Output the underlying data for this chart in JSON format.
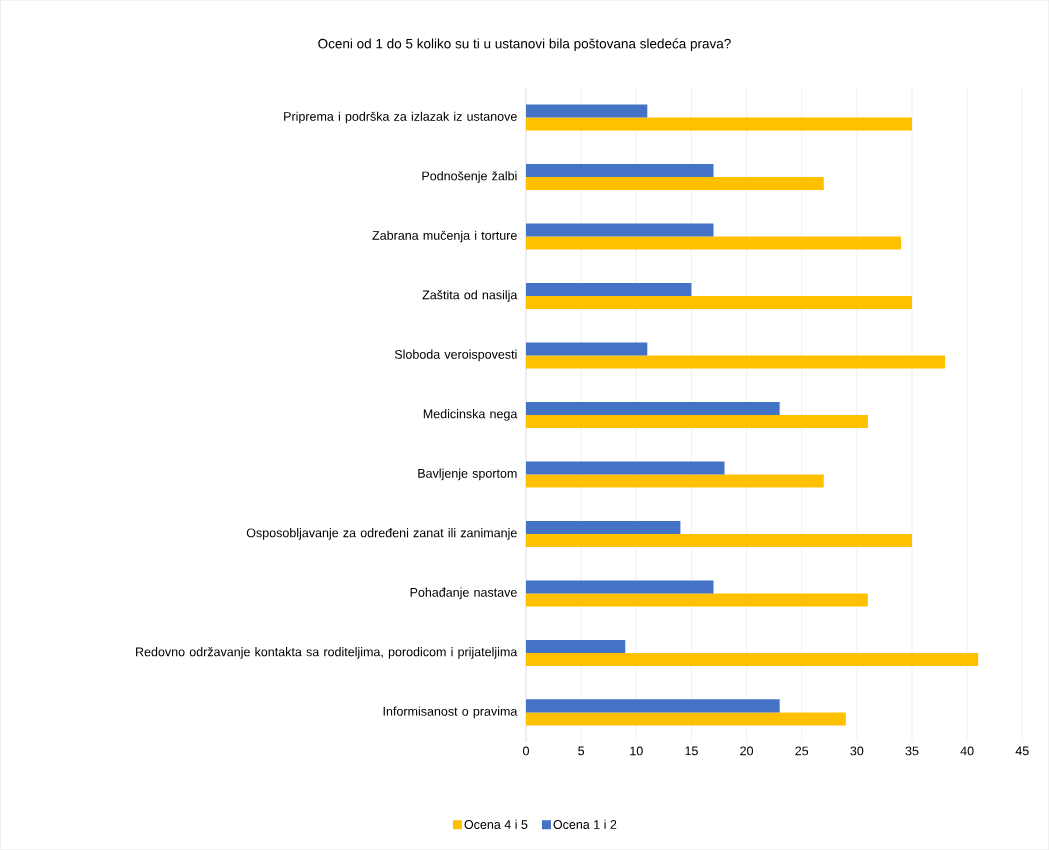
{
  "chart_data": {
    "type": "bar",
    "orientation": "horizontal",
    "title": "Oceni od 1 do 5 koliko su ti u ustanovi bila poštovana sledeća prava?",
    "categories": [
      "Priprema i podrška za izlazak iz ustanove",
      "Podnošenje žalbi",
      "Zabrana mučenja i torture",
      "Zaštita od nasilja",
      "Sloboda veroispovesti",
      "Medicinska nega",
      "Bavljenje sportom",
      "Osposobljavanje za određeni zanat ili zanimanje",
      "Pohađanje nastave",
      "Redovno održavanje kontakta sa roditeljima, porodicom i prijateljima",
      "Informisanost o pravima"
    ],
    "series": [
      {
        "name": "Ocena 4 i 5",
        "color": "#ffc000",
        "values": [
          35,
          27,
          34,
          35,
          38,
          31,
          27,
          35,
          31,
          41,
          29
        ]
      },
      {
        "name": "Ocena 1 i 2",
        "color": "#4472c4",
        "values": [
          11,
          17,
          17,
          15,
          11,
          23,
          18,
          14,
          17,
          9,
          23
        ]
      }
    ],
    "xlim": [
      0,
      45
    ],
    "xticks": [
      0,
      5,
      10,
      15,
      20,
      25,
      30,
      35,
      40,
      45
    ],
    "grid": "x",
    "legend": "bottom"
  }
}
